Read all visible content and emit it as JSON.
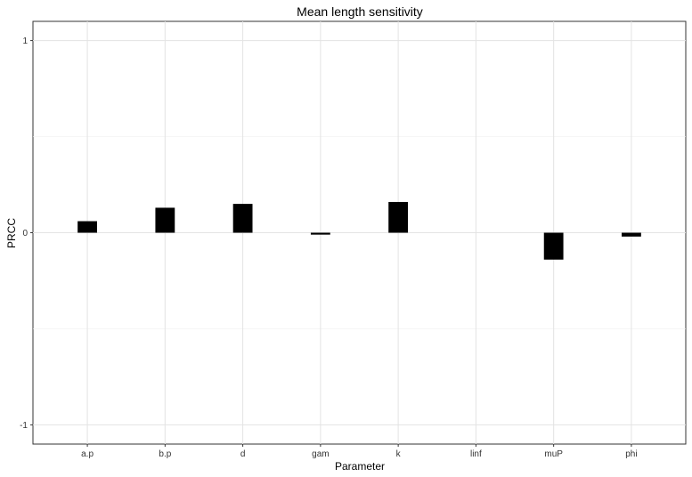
{
  "chart_data": {
    "type": "bar",
    "title": "Mean length sensitivity",
    "xlabel": "Parameter",
    "ylabel": "PRCC",
    "categories": [
      "a.p",
      "b.p",
      "d",
      "gam",
      "k",
      "linf",
      "muP",
      "phi"
    ],
    "values": [
      0.06,
      0.13,
      0.15,
      -0.01,
      0.16,
      0,
      -0.14,
      -0.02
    ],
    "ylim": [
      -1.1,
      1.1
    ],
    "yticks": [
      -1,
      0,
      1
    ],
    "grid": true,
    "bar_color": "#000000"
  }
}
